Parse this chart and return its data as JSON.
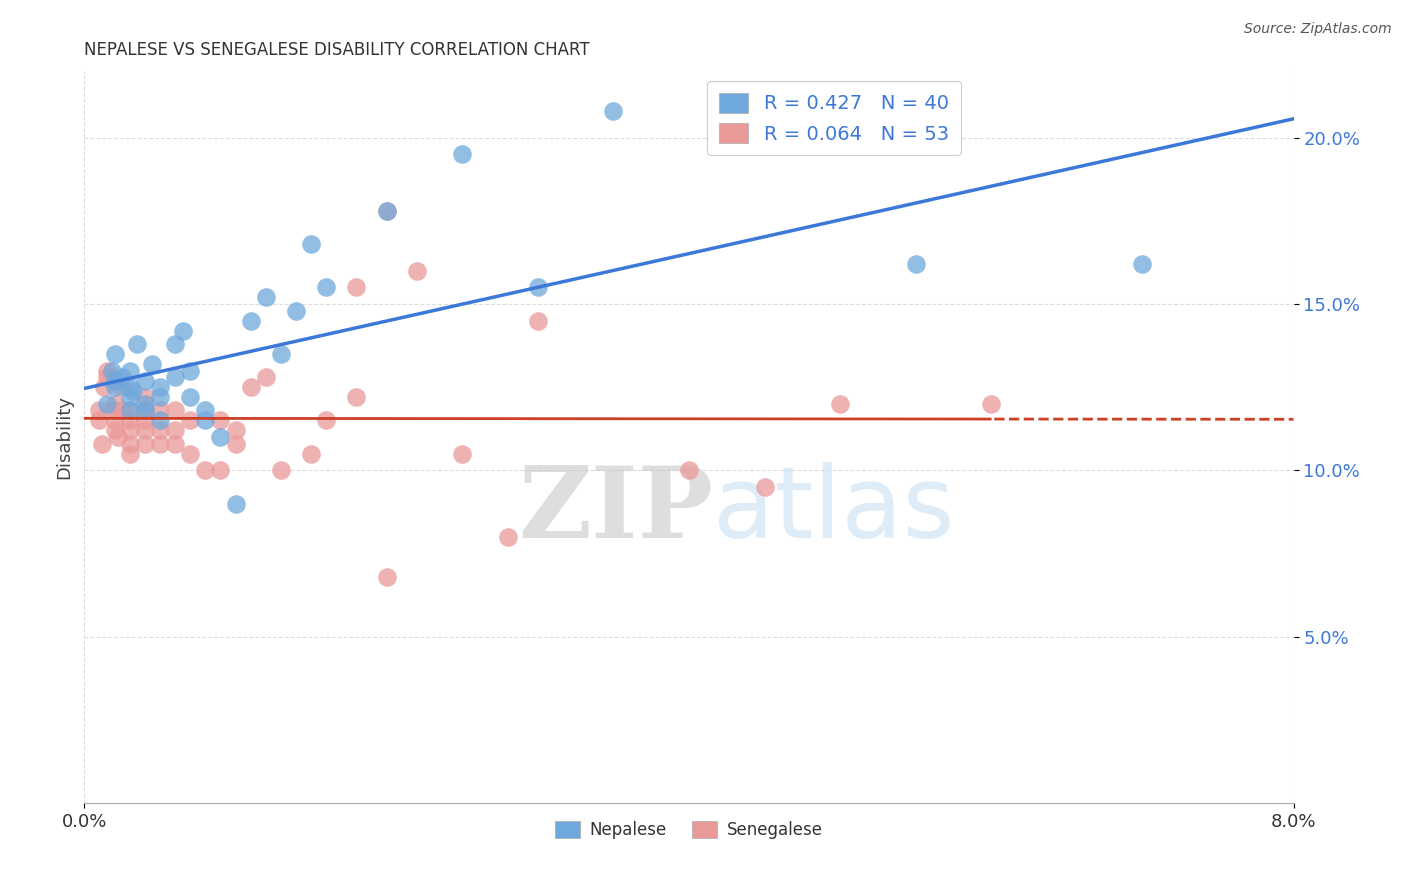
{
  "title": "NEPALESE VS SENEGALESE DISABILITY CORRELATION CHART",
  "source": "Source: ZipAtlas.com",
  "ylabel": "Disability",
  "xlim": [
    0.0,
    0.08
  ],
  "ylim": [
    0.0,
    0.22
  ],
  "yticks": [
    0.05,
    0.1,
    0.15,
    0.2
  ],
  "ytick_labels": [
    "5.0%",
    "10.0%",
    "15.0%",
    "20.0%"
  ],
  "nepalese_R": 0.427,
  "nepalese_N": 40,
  "senegalese_R": 0.064,
  "senegalese_N": 53,
  "nepalese_color": "#6fa8dc",
  "senegalese_color": "#ea9999",
  "nepalese_line_color": "#3c78d8",
  "senegalese_line_color": "#cc4125",
  "legend_text_color": "#3c78d8",
  "background_color": "#ffffff",
  "grid_color": "#dddddd",
  "watermark_zip": "ZIP",
  "watermark_atlas": "atlas",
  "nepalese_x": [
    0.0015,
    0.0018,
    0.002,
    0.002,
    0.002,
    0.0025,
    0.003,
    0.003,
    0.003,
    0.003,
    0.0032,
    0.0035,
    0.004,
    0.004,
    0.004,
    0.0045,
    0.005,
    0.005,
    0.005,
    0.006,
    0.006,
    0.0065,
    0.007,
    0.007,
    0.008,
    0.008,
    0.009,
    0.01,
    0.011,
    0.012,
    0.013,
    0.014,
    0.015,
    0.016,
    0.02,
    0.025,
    0.03,
    0.035,
    0.055,
    0.07
  ],
  "nepalese_y": [
    0.12,
    0.13,
    0.127,
    0.135,
    0.125,
    0.128,
    0.13,
    0.125,
    0.122,
    0.118,
    0.124,
    0.138,
    0.127,
    0.12,
    0.118,
    0.132,
    0.125,
    0.122,
    0.115,
    0.128,
    0.138,
    0.142,
    0.13,
    0.122,
    0.115,
    0.118,
    0.11,
    0.09,
    0.145,
    0.152,
    0.135,
    0.148,
    0.168,
    0.155,
    0.178,
    0.195,
    0.155,
    0.208,
    0.162,
    0.162
  ],
  "senegalese_x": [
    0.001,
    0.001,
    0.0012,
    0.0013,
    0.0015,
    0.0015,
    0.002,
    0.002,
    0.002,
    0.002,
    0.0022,
    0.0025,
    0.0025,
    0.003,
    0.003,
    0.003,
    0.003,
    0.003,
    0.004,
    0.004,
    0.004,
    0.004,
    0.004,
    0.005,
    0.005,
    0.005,
    0.006,
    0.006,
    0.006,
    0.007,
    0.007,
    0.008,
    0.009,
    0.009,
    0.01,
    0.01,
    0.011,
    0.012,
    0.013,
    0.015,
    0.016,
    0.018,
    0.02,
    0.022,
    0.025,
    0.028,
    0.03,
    0.04,
    0.045,
    0.05,
    0.018,
    0.02,
    0.06
  ],
  "senegalese_y": [
    0.115,
    0.118,
    0.108,
    0.125,
    0.13,
    0.128,
    0.115,
    0.12,
    0.118,
    0.112,
    0.11,
    0.125,
    0.118,
    0.115,
    0.118,
    0.112,
    0.108,
    0.105,
    0.122,
    0.118,
    0.112,
    0.108,
    0.115,
    0.118,
    0.112,
    0.108,
    0.118,
    0.112,
    0.108,
    0.115,
    0.105,
    0.1,
    0.115,
    0.1,
    0.112,
    0.108,
    0.125,
    0.128,
    0.1,
    0.105,
    0.115,
    0.122,
    0.178,
    0.16,
    0.105,
    0.08,
    0.145,
    0.1,
    0.095,
    0.12,
    0.155,
    0.068,
    0.12
  ]
}
